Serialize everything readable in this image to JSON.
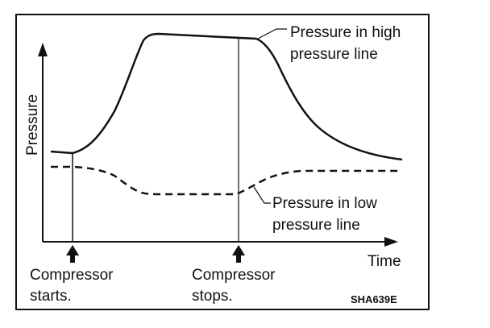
{
  "figure": {
    "axis_y_label": "Pressure",
    "axis_x_label": "Time",
    "code": "SHA639E",
    "high_line_label": [
      "Pressure in high",
      "pressure line"
    ],
    "low_line_label": [
      "Pressure in low",
      "pressure line"
    ],
    "event_start": [
      "Compressor",
      "starts."
    ],
    "event_stop": [
      "Compressor",
      "stops."
    ]
  },
  "colors": {
    "ink": "#111111",
    "background": "#ffffff"
  }
}
